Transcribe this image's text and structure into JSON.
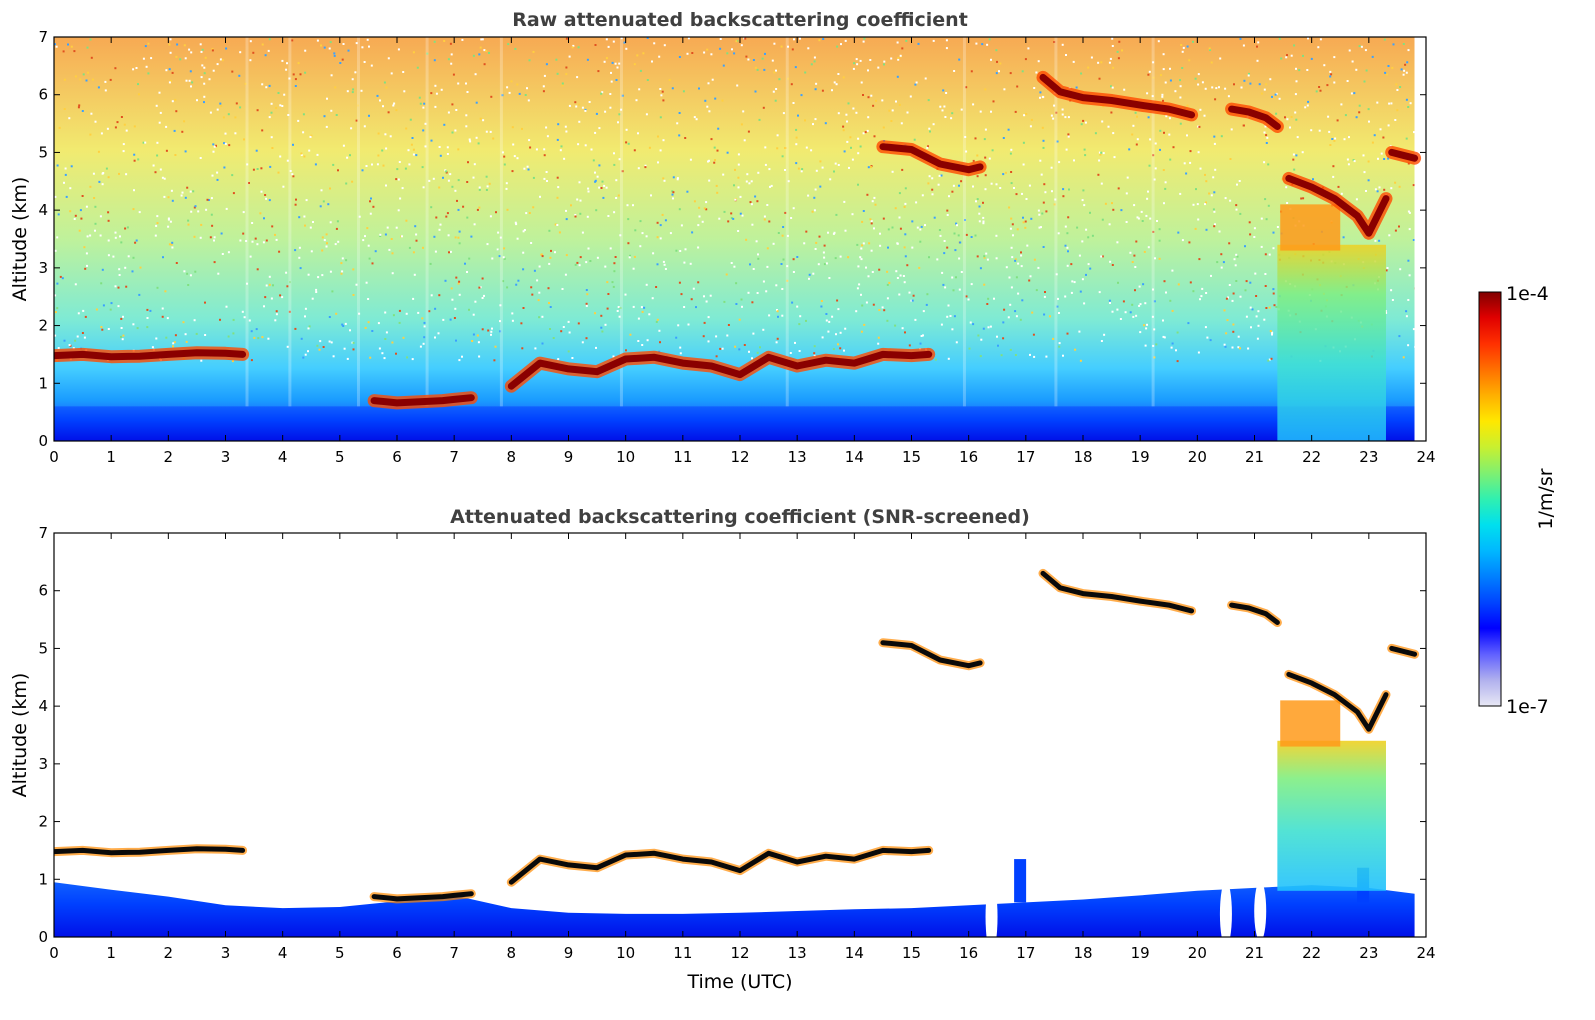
{
  "chart_data": [
    {
      "type": "heatmap",
      "title": "Raw attenuated backscattering coefficient",
      "xlabel": "",
      "ylabel": "Altitude (km)",
      "xlim": [
        0,
        24
      ],
      "ylim": [
        0,
        7
      ],
      "xticks": [
        "0",
        "1",
        "2",
        "3",
        "4",
        "5",
        "6",
        "7",
        "8",
        "9",
        "10",
        "11",
        "12",
        "13",
        "14",
        "15",
        "16",
        "17",
        "18",
        "19",
        "20",
        "21",
        "22",
        "23",
        "24"
      ],
      "yticks": [
        "0",
        "1",
        "2",
        "3",
        "4",
        "5",
        "6",
        "7"
      ],
      "screened": false,
      "cloud_layers": [
        {
          "name": "low-cloud-a",
          "t": [
            0,
            0.5,
            1,
            1.5,
            2,
            2.5,
            3,
            3.3
          ],
          "z": [
            1.48,
            1.5,
            1.46,
            1.47,
            1.5,
            1.53,
            1.52,
            1.5
          ]
        },
        {
          "name": "low-cloud-b",
          "t": [
            5.6,
            6.0,
            6.4,
            6.8,
            7.0,
            7.3
          ],
          "z": [
            0.7,
            0.66,
            0.68,
            0.7,
            0.72,
            0.75
          ]
        },
        {
          "name": "low-cloud-c",
          "t": [
            8.0,
            8.5,
            9.0,
            9.5,
            10.0,
            10.5,
            11.0,
            11.5,
            12.0,
            12.5,
            13.0,
            13.5,
            14.0,
            14.5,
            15.0,
            15.3
          ],
          "z": [
            0.95,
            1.35,
            1.25,
            1.2,
            1.42,
            1.45,
            1.35,
            1.3,
            1.15,
            1.45,
            1.3,
            1.4,
            1.35,
            1.5,
            1.48,
            1.5
          ]
        },
        {
          "name": "mid-cloud-a",
          "t": [
            14.5,
            15.0,
            15.5,
            16.0,
            16.2
          ],
          "z": [
            5.1,
            5.05,
            4.8,
            4.7,
            4.75
          ]
        },
        {
          "name": "high-cloud-a",
          "t": [
            17.3,
            17.6,
            18.0,
            18.5,
            19.0,
            19.5,
            19.9
          ],
          "z": [
            6.3,
            6.05,
            5.95,
            5.9,
            5.82,
            5.75,
            5.65
          ]
        },
        {
          "name": "high-cloud-b",
          "t": [
            20.6,
            20.9,
            21.2,
            21.4
          ],
          "z": [
            5.75,
            5.7,
            5.6,
            5.45
          ]
        },
        {
          "name": "mid-cloud-b",
          "t": [
            21.6,
            22.0,
            22.4,
            22.8,
            23.0,
            23.3
          ],
          "z": [
            4.55,
            4.4,
            4.2,
            3.9,
            3.6,
            4.2
          ]
        },
        {
          "name": "mid-cloud-c",
          "t": [
            23.4,
            23.6,
            23.8
          ],
          "z": [
            5.0,
            4.95,
            4.9
          ]
        }
      ],
      "precip_region": {
        "t": [
          21.4,
          23.3
        ],
        "ztop": 3.4
      }
    },
    {
      "type": "heatmap",
      "title": "Attenuated backscattering coefficient (SNR-screened)",
      "xlabel": "Time (UTC)",
      "ylabel": "Altitude (km)",
      "xlim": [
        0,
        24
      ],
      "ylim": [
        0,
        7
      ],
      "xticks": [
        "0",
        "1",
        "2",
        "3",
        "4",
        "5",
        "6",
        "7",
        "8",
        "9",
        "10",
        "11",
        "12",
        "13",
        "14",
        "15",
        "16",
        "17",
        "18",
        "19",
        "20",
        "21",
        "22",
        "23",
        "24"
      ],
      "yticks": [
        "0",
        "1",
        "2",
        "3",
        "4",
        "5",
        "6",
        "7"
      ],
      "screened": true,
      "boundary_layer_top": {
        "t": [
          0,
          1,
          2,
          3,
          4,
          5,
          6,
          7,
          8,
          9,
          10,
          11,
          12,
          13,
          14,
          15,
          16,
          17,
          18,
          19,
          20,
          21,
          22,
          23,
          23.8
        ],
        "z": [
          0.95,
          0.82,
          0.7,
          0.55,
          0.5,
          0.52,
          0.62,
          0.72,
          0.5,
          0.42,
          0.4,
          0.4,
          0.42,
          0.45,
          0.48,
          0.5,
          0.55,
          0.6,
          0.65,
          0.72,
          0.8,
          0.85,
          0.9,
          0.85,
          0.75
        ]
      }
    }
  ],
  "colorbar": {
    "label": "1/m/sr",
    "max_label": "1e-4",
    "min_label": "1e-7",
    "colors": [
      "#e8e8f5",
      "#b0b0ee",
      "#6060ff",
      "#0000ff",
      "#0044ff",
      "#0080ff",
      "#00b8ff",
      "#00e0ee",
      "#30f0b0",
      "#80f070",
      "#c8f030",
      "#ffe800",
      "#ffb000",
      "#ff7000",
      "#ff3000",
      "#e00000",
      "#800000"
    ]
  }
}
